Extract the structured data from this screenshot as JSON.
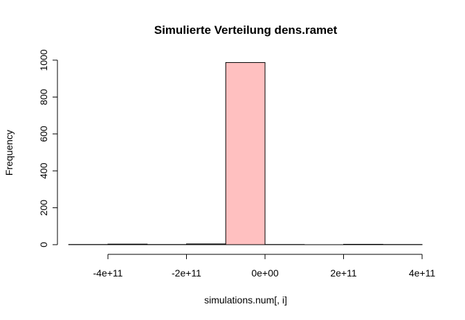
{
  "chart_data": {
    "type": "bar",
    "title": "Simulierte Verteilung dens.ramet",
    "xlabel": "simulations.num[, i]",
    "ylabel": "Frequency",
    "xlim": [
      -500000000000,
      400000000000
    ],
    "ylim": [
      0,
      1000
    ],
    "bin_edges": [
      -500000000000,
      -400000000000,
      -300000000000,
      -200000000000,
      -100000000000,
      0,
      100000000000,
      200000000000,
      300000000000,
      400000000000
    ],
    "values": [
      1,
      3,
      1,
      4,
      987,
      1,
      0,
      2,
      1
    ],
    "fill_colors": [
      "#ffffff",
      "#ffffff",
      "#ffffff",
      "#ffffff",
      "#ffc0c0",
      "#ffffff",
      "#ffffff",
      "#ffffff",
      "#ffffff"
    ],
    "xticks": [
      -400000000000,
      -200000000000,
      0,
      200000000000,
      400000000000
    ],
    "xtick_labels": [
      "-4e+11",
      "-2e+11",
      "0e+00",
      "2e+11",
      "4e+11"
    ],
    "yticks": [
      0,
      200,
      400,
      600,
      800,
      1000
    ],
    "ytick_labels": [
      "0",
      "200",
      "400",
      "600",
      "800",
      "1000"
    ],
    "grid": false
  }
}
